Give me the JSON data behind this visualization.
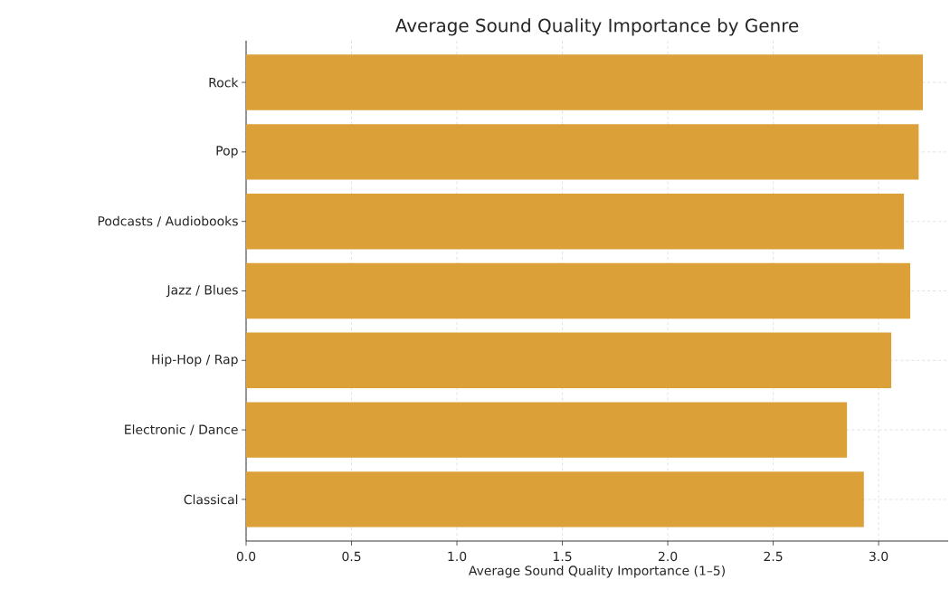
{
  "chart_data": {
    "type": "bar",
    "orientation": "horizontal",
    "title": "Average Sound Quality Importance by Genre",
    "xlabel": "Average Sound Quality Importance (1–5)",
    "categories": [
      "Rock",
      "Pop",
      "Podcasts / Audiobooks",
      "Jazz / Blues",
      "Hip-Hop / Rap",
      "Electronic / Dance",
      "Classical"
    ],
    "values": [
      3.21,
      3.19,
      3.12,
      3.15,
      3.06,
      2.85,
      2.93
    ],
    "color": "#dba038",
    "xlim": [
      0,
      3.33
    ],
    "xticks": [
      {
        "value": 0,
        "label": "0.0"
      },
      0.5,
      {
        "value": 1,
        "label": "1.0"
      },
      1.5,
      {
        "value": 2,
        "label": "2.0"
      },
      2.5,
      {
        "value": 3,
        "label": "3.0"
      }
    ],
    "grid": true
  }
}
